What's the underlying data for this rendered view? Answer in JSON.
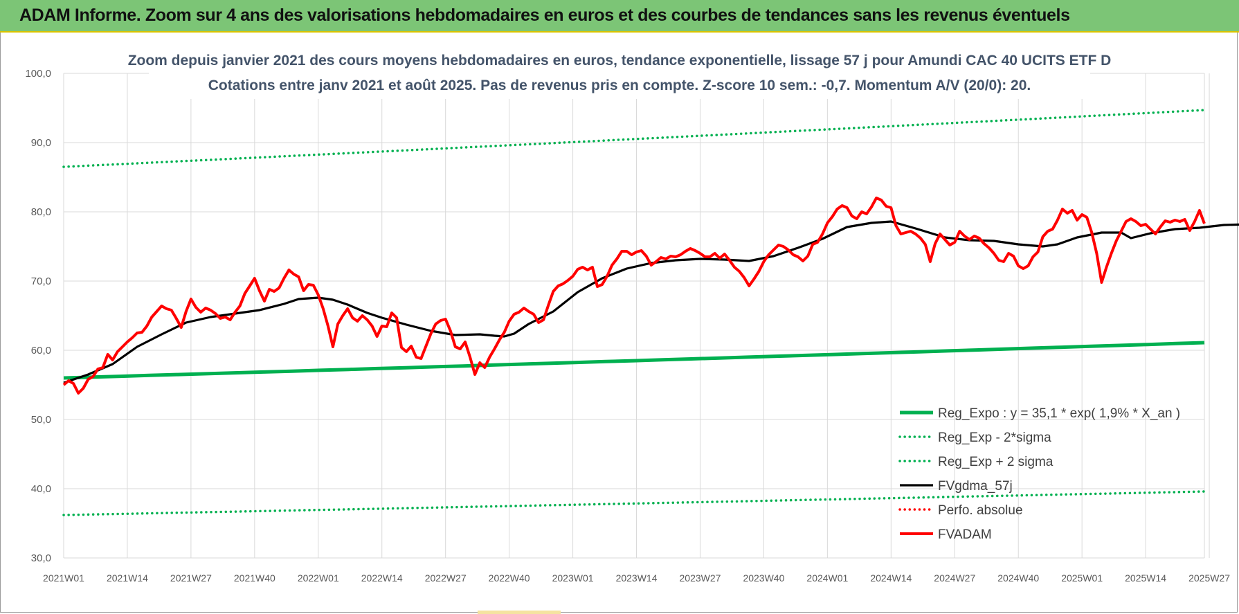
{
  "banner": {
    "title": "ADAM Informe. Zoom sur 4 ans des valorisations hebdomadaires en euros et des courbes de tendances sans les revenus éventuels"
  },
  "colors": {
    "banner_bg": "#7cc576",
    "green": "#00b050",
    "black": "#000000",
    "red": "#ff0000",
    "grid": "#d9d9d9"
  },
  "chart_data": {
    "type": "line",
    "title": "Zoom depuis janvier 2021 des cours moyens hebdomadaires en euros, tendance exponentielle, lissage 57 j pour Amundi CAC 40 UCITS ETF D",
    "subtitle": "Cotations entre janv 2021 et août 2025. Pas de revenus pris en compte. Z-score 10 sem.: -0,7. Momentum A/V (20/0): 20.",
    "xlabel": "",
    "ylabel": "",
    "ylim": [
      30,
      100
    ],
    "yticks": [
      "30,0",
      "40,0",
      "50,0",
      "60,0",
      "70,0",
      "80,0",
      "90,0",
      "100,0"
    ],
    "xticks": [
      "2021W01",
      "2021W14",
      "2021W27",
      "2021W40",
      "2022W01",
      "2022W14",
      "2022W27",
      "2022W40",
      "2023W01",
      "2023W14",
      "2023W27",
      "2023W40",
      "2024W01",
      "2024W14",
      "2024W27",
      "2024W40",
      "2025W01",
      "2025W14",
      "2025W27"
    ],
    "x_step_weeks": 13,
    "grid": true,
    "legend_position": "bottom-right",
    "series": [
      {
        "name": "Reg_Expo : y = 35,1 * exp( 1,9% *  X_an )",
        "style": "solid-thick",
        "color": "#00b050",
        "values": [
          [
            0,
            56.0
          ],
          [
            242,
            61.1
          ]
        ]
      },
      {
        "name": "Reg_Exp - 2*sigma",
        "style": "dotted",
        "color": "#00b050",
        "values": [
          [
            0,
            36.2
          ],
          [
            242,
            39.6
          ]
        ]
      },
      {
        "name": "Reg_Exp + 2 sigma",
        "style": "dotted",
        "color": "#00b050",
        "values": [
          [
            0,
            86.5
          ],
          [
            242,
            94.7
          ]
        ]
      },
      {
        "name": "FVgdma_57j",
        "style": "solid",
        "color": "#000000",
        "values": [
          [
            0,
            55.3
          ],
          [
            5,
            56.5
          ],
          [
            10,
            58.0
          ],
          [
            15,
            60.5
          ],
          [
            20,
            62.3
          ],
          [
            25,
            64.0
          ],
          [
            30,
            64.8
          ],
          [
            35,
            65.3
          ],
          [
            40,
            65.8
          ],
          [
            45,
            66.7
          ],
          [
            48,
            67.4
          ],
          [
            52,
            67.6
          ],
          [
            55,
            67.3
          ],
          [
            58,
            66.6
          ],
          [
            62,
            65.4
          ],
          [
            65,
            64.7
          ],
          [
            70,
            63.7
          ],
          [
            75,
            62.8
          ],
          [
            80,
            62.2
          ],
          [
            85,
            62.3
          ],
          [
            88,
            62.1
          ],
          [
            90,
            62.0
          ],
          [
            92,
            62.4
          ],
          [
            95,
            63.8
          ],
          [
            100,
            65.6
          ],
          [
            105,
            68.4
          ],
          [
            110,
            70.4
          ],
          [
            115,
            71.8
          ],
          [
            120,
            72.6
          ],
          [
            125,
            73.0
          ],
          [
            130,
            73.2
          ],
          [
            135,
            73.1
          ],
          [
            140,
            72.9
          ],
          [
            145,
            73.6
          ],
          [
            150,
            74.8
          ],
          [
            155,
            76.1
          ],
          [
            160,
            77.8
          ],
          [
            165,
            78.4
          ],
          [
            169,
            78.6
          ],
          [
            174,
            77.6
          ],
          [
            180,
            76.3
          ],
          [
            185,
            75.9
          ],
          [
            190,
            75.8
          ],
          [
            195,
            75.3
          ],
          [
            200,
            75.0
          ],
          [
            203,
            75.3
          ],
          [
            207,
            76.3
          ],
          [
            212,
            77.0
          ],
          [
            216,
            77.0
          ],
          [
            218,
            76.2
          ],
          [
            222,
            76.9
          ],
          [
            227,
            77.5
          ],
          [
            232,
            77.7
          ],
          [
            237,
            78.1
          ],
          [
            242,
            78.2
          ]
        ]
      },
      {
        "name": "Perfo. absolue",
        "style": "dotted",
        "color": "#ff0000",
        "values": []
      },
      {
        "name": "FVADAM",
        "style": "solid-thick",
        "color": "#ff0000",
        "values": [
          [
            0,
            55.0
          ],
          [
            1,
            55.6
          ],
          [
            2,
            55.2
          ],
          [
            3,
            53.8
          ],
          [
            4,
            54.5
          ],
          [
            5,
            55.8
          ],
          [
            6,
            56.2
          ],
          [
            7,
            57.3
          ],
          [
            8,
            57.5
          ],
          [
            9,
            59.4
          ],
          [
            10,
            58.6
          ],
          [
            11,
            59.8
          ],
          [
            12,
            60.5
          ],
          [
            13,
            61.2
          ],
          [
            14,
            61.8
          ],
          [
            15,
            62.5
          ],
          [
            16,
            62.6
          ],
          [
            17,
            63.5
          ],
          [
            18,
            64.8
          ],
          [
            19,
            65.6
          ],
          [
            20,
            66.4
          ],
          [
            21,
            66.0
          ],
          [
            22,
            65.8
          ],
          [
            23,
            64.6
          ],
          [
            24,
            63.3
          ],
          [
            25,
            65.6
          ],
          [
            26,
            67.4
          ],
          [
            27,
            66.2
          ],
          [
            28,
            65.5
          ],
          [
            29,
            66.1
          ],
          [
            30,
            65.8
          ],
          [
            31,
            65.3
          ],
          [
            32,
            64.6
          ],
          [
            33,
            64.8
          ],
          [
            34,
            64.4
          ],
          [
            35,
            65.5
          ],
          [
            36,
            66.4
          ],
          [
            37,
            68.2
          ],
          [
            38,
            69.3
          ],
          [
            39,
            70.4
          ],
          [
            40,
            68.6
          ],
          [
            41,
            67.1
          ],
          [
            42,
            68.8
          ],
          [
            43,
            68.5
          ],
          [
            44,
            69.0
          ],
          [
            45,
            70.4
          ],
          [
            46,
            71.6
          ],
          [
            47,
            71.0
          ],
          [
            48,
            70.6
          ],
          [
            49,
            68.6
          ],
          [
            50,
            69.5
          ],
          [
            51,
            69.4
          ],
          [
            52,
            68.0
          ],
          [
            53,
            66.0
          ],
          [
            54,
            63.5
          ],
          [
            55,
            60.5
          ],
          [
            56,
            63.8
          ],
          [
            57,
            65.0
          ],
          [
            58,
            66.0
          ],
          [
            59,
            64.7
          ],
          [
            60,
            64.2
          ],
          [
            61,
            65.0
          ],
          [
            62,
            64.4
          ],
          [
            63,
            63.5
          ],
          [
            64,
            62.0
          ],
          [
            65,
            63.5
          ],
          [
            66,
            63.4
          ],
          [
            67,
            65.4
          ],
          [
            68,
            64.7
          ],
          [
            69,
            60.4
          ],
          [
            70,
            59.8
          ],
          [
            71,
            60.6
          ],
          [
            72,
            59.0
          ],
          [
            73,
            58.8
          ],
          [
            74,
            60.6
          ],
          [
            75,
            62.4
          ],
          [
            76,
            63.8
          ],
          [
            77,
            64.3
          ],
          [
            78,
            64.5
          ],
          [
            79,
            62.8
          ],
          [
            80,
            60.5
          ],
          [
            81,
            60.2
          ],
          [
            82,
            61.2
          ],
          [
            83,
            59.0
          ],
          [
            84,
            56.5
          ],
          [
            85,
            58.2
          ],
          [
            86,
            57.5
          ],
          [
            87,
            59.0
          ],
          [
            88,
            60.2
          ],
          [
            89,
            61.5
          ],
          [
            90,
            62.6
          ],
          [
            91,
            64.2
          ],
          [
            92,
            65.2
          ],
          [
            93,
            65.5
          ],
          [
            94,
            66.1
          ],
          [
            95,
            65.6
          ],
          [
            96,
            65.2
          ],
          [
            97,
            64.0
          ],
          [
            98,
            64.4
          ],
          [
            99,
            66.5
          ],
          [
            100,
            68.5
          ],
          [
            101,
            69.3
          ],
          [
            102,
            69.6
          ],
          [
            103,
            70.1
          ],
          [
            104,
            70.7
          ],
          [
            105,
            71.7
          ],
          [
            106,
            72.0
          ],
          [
            107,
            71.6
          ],
          [
            108,
            72.0
          ],
          [
            109,
            69.2
          ],
          [
            110,
            69.5
          ],
          [
            111,
            70.7
          ],
          [
            112,
            72.3
          ],
          [
            113,
            73.2
          ],
          [
            114,
            74.3
          ],
          [
            115,
            74.3
          ],
          [
            116,
            73.8
          ],
          [
            117,
            74.2
          ],
          [
            118,
            74.4
          ],
          [
            119,
            73.6
          ],
          [
            120,
            72.3
          ],
          [
            121,
            72.8
          ],
          [
            122,
            73.4
          ],
          [
            123,
            73.2
          ],
          [
            124,
            73.6
          ],
          [
            125,
            73.5
          ],
          [
            126,
            73.8
          ],
          [
            127,
            74.3
          ],
          [
            128,
            74.7
          ],
          [
            129,
            74.4
          ],
          [
            130,
            74.0
          ],
          [
            131,
            73.5
          ],
          [
            132,
            73.5
          ],
          [
            133,
            74.0
          ],
          [
            134,
            73.3
          ],
          [
            135,
            73.9
          ],
          [
            136,
            73.0
          ],
          [
            137,
            72.0
          ],
          [
            138,
            71.4
          ],
          [
            139,
            70.5
          ],
          [
            140,
            69.3
          ],
          [
            141,
            70.3
          ],
          [
            142,
            71.4
          ],
          [
            143,
            72.8
          ],
          [
            144,
            73.8
          ],
          [
            145,
            74.5
          ],
          [
            146,
            75.2
          ],
          [
            147,
            75.0
          ],
          [
            148,
            74.5
          ],
          [
            149,
            73.8
          ],
          [
            150,
            73.5
          ],
          [
            151,
            72.9
          ],
          [
            152,
            73.6
          ],
          [
            153,
            75.3
          ],
          [
            154,
            75.6
          ],
          [
            155,
            76.8
          ],
          [
            156,
            78.4
          ],
          [
            157,
            79.3
          ],
          [
            158,
            80.4
          ],
          [
            159,
            80.9
          ],
          [
            160,
            80.6
          ],
          [
            161,
            79.4
          ],
          [
            162,
            79.0
          ],
          [
            163,
            80.0
          ],
          [
            164,
            79.7
          ],
          [
            165,
            80.7
          ],
          [
            166,
            82.0
          ],
          [
            167,
            81.7
          ],
          [
            168,
            80.8
          ],
          [
            169,
            80.6
          ],
          [
            170,
            78.0
          ],
          [
            171,
            76.8
          ],
          [
            172,
            77.0
          ],
          [
            173,
            77.2
          ],
          [
            174,
            76.8
          ],
          [
            175,
            76.2
          ],
          [
            176,
            75.3
          ],
          [
            177,
            72.8
          ],
          [
            178,
            75.4
          ],
          [
            179,
            76.8
          ],
          [
            180,
            76.0
          ],
          [
            181,
            75.2
          ],
          [
            182,
            75.6
          ],
          [
            183,
            77.2
          ],
          [
            184,
            76.5
          ],
          [
            185,
            76.0
          ],
          [
            186,
            76.5
          ],
          [
            187,
            76.2
          ],
          [
            188,
            75.4
          ],
          [
            189,
            74.8
          ],
          [
            190,
            74.0
          ],
          [
            191,
            73.0
          ],
          [
            192,
            72.8
          ],
          [
            193,
            74.0
          ],
          [
            194,
            73.6
          ],
          [
            195,
            72.2
          ],
          [
            196,
            71.8
          ],
          [
            197,
            72.2
          ],
          [
            198,
            73.5
          ],
          [
            199,
            74.2
          ],
          [
            200,
            76.4
          ],
          [
            201,
            77.2
          ],
          [
            202,
            77.5
          ],
          [
            203,
            78.8
          ],
          [
            204,
            80.4
          ],
          [
            205,
            79.8
          ],
          [
            206,
            80.2
          ],
          [
            207,
            78.8
          ],
          [
            208,
            79.6
          ],
          [
            209,
            79.2
          ],
          [
            210,
            77.0
          ],
          [
            211,
            74.0
          ],
          [
            212,
            69.8
          ],
          [
            213,
            72.0
          ],
          [
            214,
            74.0
          ],
          [
            215,
            75.8
          ],
          [
            216,
            77.2
          ],
          [
            217,
            78.6
          ],
          [
            218,
            79.0
          ],
          [
            219,
            78.6
          ],
          [
            220,
            78.0
          ],
          [
            221,
            78.2
          ],
          [
            222,
            77.5
          ],
          [
            223,
            76.8
          ],
          [
            224,
            77.8
          ],
          [
            225,
            78.7
          ],
          [
            226,
            78.5
          ],
          [
            227,
            78.8
          ],
          [
            228,
            78.6
          ],
          [
            229,
            78.9
          ],
          [
            230,
            77.3
          ],
          [
            231,
            78.6
          ],
          [
            232,
            80.2
          ],
          [
            233,
            78.3
          ]
        ]
      }
    ]
  }
}
